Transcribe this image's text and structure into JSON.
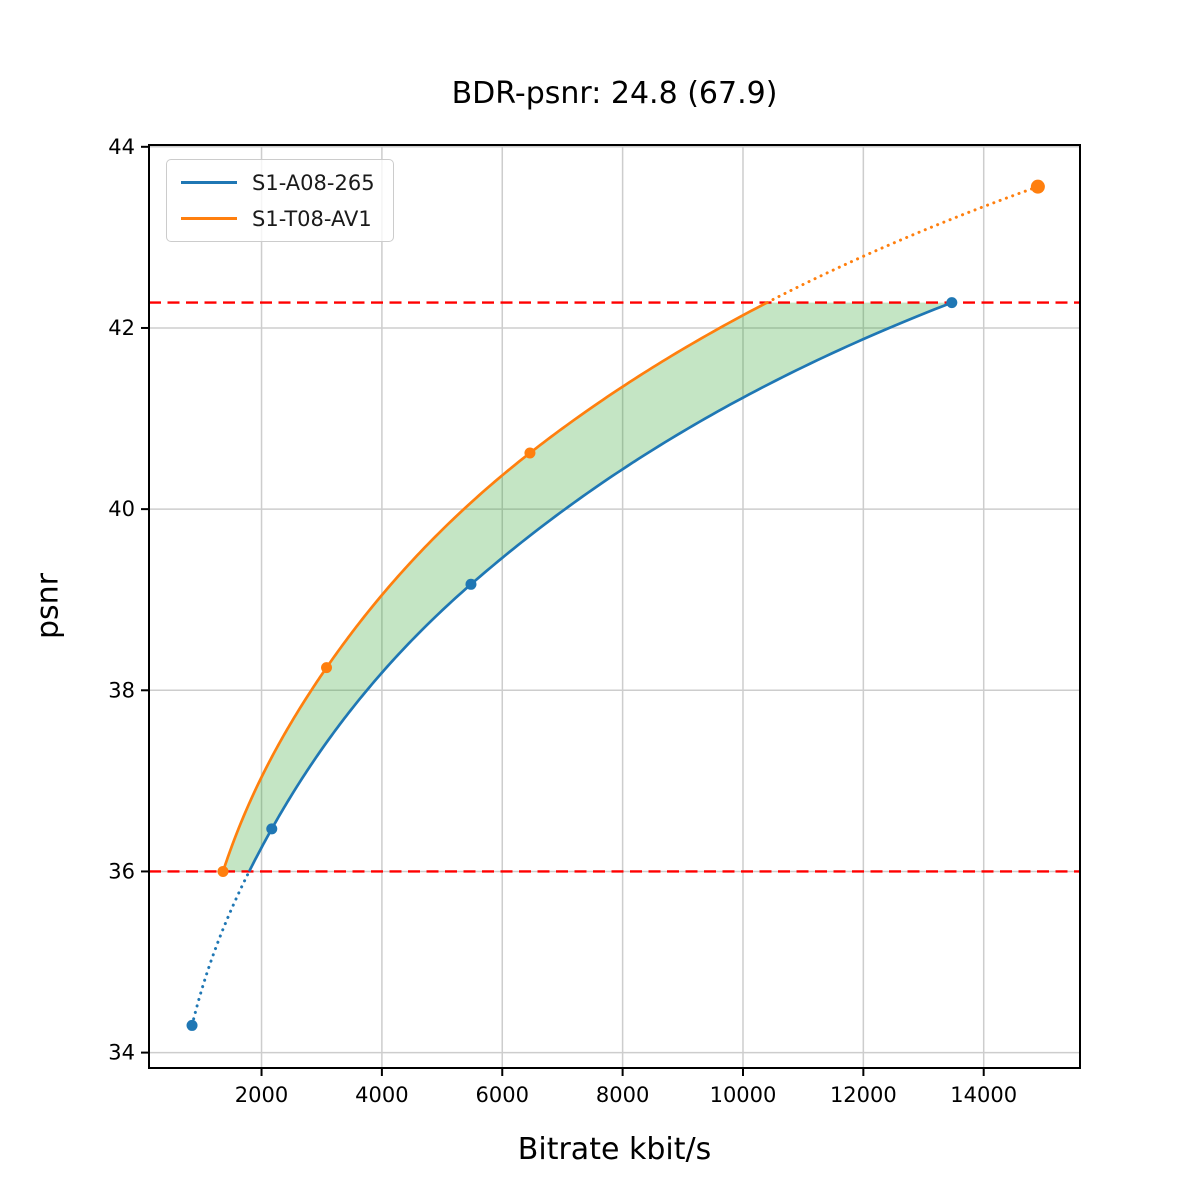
{
  "figure": {
    "background": "#ffffff"
  },
  "chart_data": {
    "type": "line",
    "title": "BDR-psnr: 24.8 (67.9)",
    "xlabel": "Bitrate kbit/s",
    "ylabel": "psnr",
    "xlim": [
      130,
      15600
    ],
    "ylim": [
      33.83,
      44.02
    ],
    "x_ticks": [
      2000,
      4000,
      6000,
      8000,
      10000,
      12000,
      14000
    ],
    "y_ticks": [
      34,
      36,
      38,
      40,
      42,
      44
    ],
    "grid": true,
    "grid_color": "#cdcdcd",
    "spine_color": "#000000",
    "text_color": "#000000",
    "legend": {
      "position": "upper left"
    },
    "series": [
      {
        "name": "S1-A08-265",
        "color": "#1f77b4",
        "x": [
          845,
          2170,
          5480,
          13470
        ],
        "y": [
          34.3,
          36.47,
          39.17,
          42.28
        ]
      },
      {
        "name": "S1-T08-AV1",
        "color": "#ff7f0e",
        "x": [
          1360,
          3080,
          6460,
          14900
        ],
        "y": [
          36.0,
          38.25,
          40.62,
          43.56
        ]
      }
    ],
    "reference_lines": {
      "color": "#ff0000",
      "style": "dashed",
      "y_values": [
        36.0,
        42.28
      ]
    },
    "shaded_region": {
      "fill_color": "#2ca02c",
      "opacity": 0.28,
      "description": "area between the two rate-distortion curves for psnr between 36.0 and 42.28"
    },
    "curve_style_note": "curves solid inside psnr overlap [36.0, 42.28], dotted outside overlap"
  }
}
